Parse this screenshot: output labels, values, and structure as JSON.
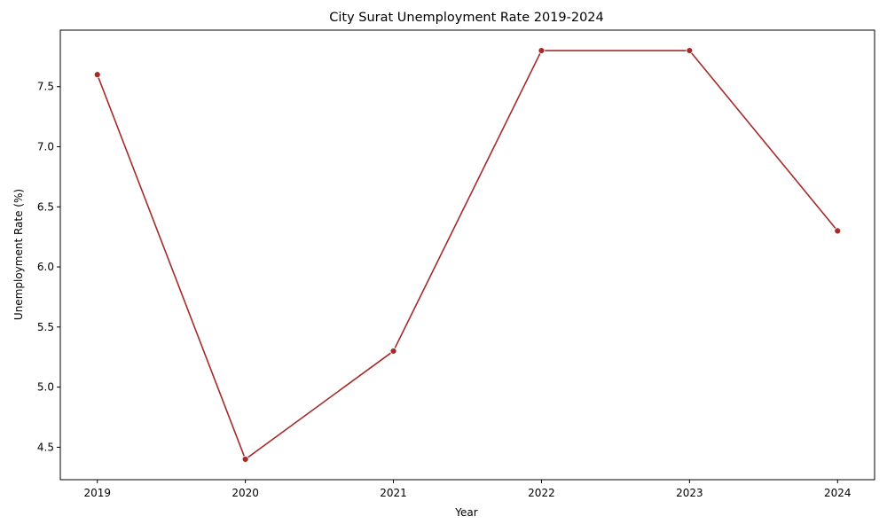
{
  "chart_data": {
    "type": "line",
    "title": "City Surat Unemployment Rate 2019-2024",
    "xlabel": "Year",
    "ylabel": "Unemployment Rate (%)",
    "x": [
      2019,
      2020,
      2021,
      2022,
      2023,
      2024
    ],
    "x_tick_labels": [
      "2019",
      "2020",
      "2021",
      "2022",
      "2023",
      "2024"
    ],
    "y_ticks": [
      4.5,
      5.0,
      5.5,
      6.0,
      6.5,
      7.0,
      7.5
    ],
    "y_tick_labels": [
      "4.5",
      "5.0",
      "5.5",
      "6.0",
      "6.5",
      "7.0",
      "7.5"
    ],
    "xlim": [
      2018.75,
      2024.25
    ],
    "ylim": [
      4.23,
      7.97
    ],
    "series": [
      {
        "values": [
          7.6,
          4.4,
          5.3,
          7.8,
          7.8,
          6.3
        ],
        "color": "#a52a2a",
        "marker": "circle"
      }
    ],
    "grid": false,
    "legend": "none"
  }
}
